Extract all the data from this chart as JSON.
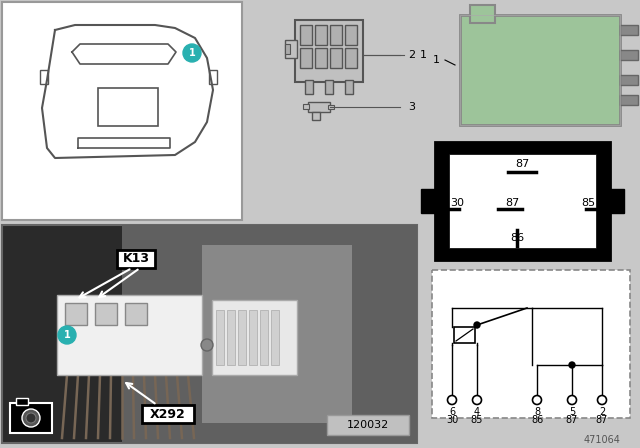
{
  "bg_color": "#c8c8c8",
  "white": "#ffffff",
  "black": "#000000",
  "cyan": "#29b0b0",
  "relay_green": "#9dc49a",
  "gray_light": "#cccccc",
  "photo_dark": "#383838",
  "label_471064": "471064",
  "photo_id": "120032",
  "connector_label": "X292",
  "relay_label": "K13"
}
